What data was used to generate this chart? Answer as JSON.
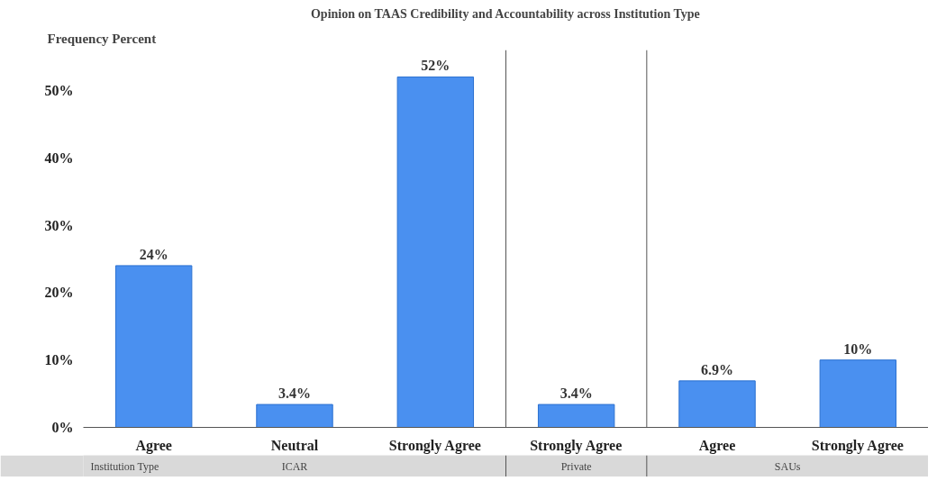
{
  "chart_data": {
    "type": "bar",
    "title": "Opinion on TAAS Credibility and Accountability across Institution Type",
    "ylabel": "Frequency Percent",
    "categories": [
      "Agree",
      "Neutral",
      "Strongly Agree",
      "Strongly Agree",
      "Agree",
      "Strongly Agree"
    ],
    "values": [
      24,
      3.4,
      52,
      3.4,
      6.9,
      10
    ],
    "color": "#4a90f0",
    "value_labels": [
      "24%",
      "3.4%",
      "52%",
      "3.4%",
      "6.9%",
      "10%"
    ],
    "ylim": [
      0,
      56
    ],
    "yticks": [
      {
        "value": 0,
        "label": "0%"
      },
      {
        "value": 10,
        "label": "10%"
      },
      {
        "value": 20,
        "label": "20%"
      },
      {
        "value": 30,
        "label": "30%"
      },
      {
        "value": 40,
        "label": "40%"
      },
      {
        "value": 50,
        "label": "50%"
      }
    ],
    "annotations": [
      "Institution Type",
      "ICAR",
      "Private",
      "SAUs"
    ],
    "grid": false
  }
}
